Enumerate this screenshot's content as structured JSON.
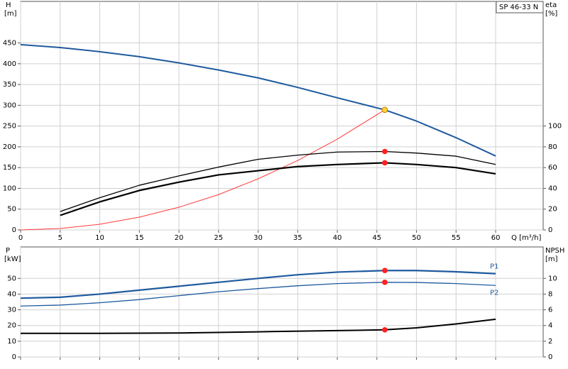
{
  "chart_data": [
    {
      "type": "line",
      "annotation": "SP 46-33 N",
      "ylabel": "H",
      "yunit": "[m]",
      "y2label": "eta",
      "y2unit": "[%]",
      "xlabel": "Q [m³/h]",
      "xlim": [
        0,
        66
      ],
      "xticks": [
        0,
        5,
        10,
        15,
        20,
        25,
        30,
        35,
        40,
        45,
        50,
        55,
        60
      ],
      "ylim": [
        0,
        550
      ],
      "yticks": [
        0,
        50,
        100,
        150,
        200,
        250,
        300,
        350,
        400,
        450
      ],
      "y2lim": [
        0,
        220
      ],
      "y2ticks": [
        0,
        20,
        40,
        60,
        80,
        100
      ],
      "grid": true,
      "series": [
        {
          "color": "#1f5a9e",
          "width": 2,
          "x": [
            0,
            5,
            10,
            15,
            20,
            25,
            30,
            35,
            40,
            46,
            50,
            55,
            60
          ],
          "values": [
            446,
            439,
            429,
            417,
            402,
            385,
            366,
            343,
            318,
            289,
            262,
            222,
            178
          ]
        },
        {
          "color": "#ff3b3b",
          "width": 1,
          "x": [
            0,
            5,
            10,
            15,
            20,
            25,
            30,
            35,
            40,
            46
          ],
          "values": [
            0,
            3.4,
            13.7,
            30.7,
            54.6,
            85,
            123,
            167,
            218.5,
            289
          ]
        },
        {
          "color": "#000000",
          "width": 1.3,
          "axis": "y2",
          "x": [
            5,
            10,
            15,
            20,
            25,
            30,
            35,
            40,
            46,
            50,
            55,
            60
          ],
          "values": [
            17.7,
            31,
            43,
            52,
            60.5,
            68,
            72,
            75,
            75.5,
            74,
            71,
            63
          ]
        },
        {
          "color": "#000000",
          "width": 2.2,
          "axis": "y2",
          "x": [
            5,
            10,
            15,
            20,
            25,
            30,
            35,
            40,
            46,
            50,
            55,
            60
          ],
          "values": [
            14,
            27,
            38,
            46,
            53,
            57,
            61,
            63,
            64.6,
            63,
            60,
            54
          ]
        },
        {
          "style": "point",
          "color": "#ff2020",
          "axis": "y2",
          "x": [
            46
          ],
          "values": [
            75.5
          ]
        },
        {
          "style": "point",
          "color": "#ff2020",
          "axis": "y2",
          "x": [
            46
          ],
          "values": [
            64.6
          ]
        },
        {
          "style": "point",
          "color": "#ffd23f",
          "x": [
            46
          ],
          "values": [
            289
          ]
        }
      ]
    },
    {
      "type": "line",
      "ylabel": "P",
      "yunit": "[kW]",
      "y2label": "NPSH",
      "y2unit": "[m]",
      "xlim": [
        0,
        66
      ],
      "xticks": [
        0,
        5,
        10,
        15,
        20,
        25,
        30,
        35,
        40,
        45,
        50,
        55,
        60
      ],
      "ylim": [
        0,
        70
      ],
      "yticks": [
        0,
        10,
        20,
        30,
        40,
        50
      ],
      "y2lim": [
        0,
        14
      ],
      "y2ticks": [
        0,
        2,
        4,
        6,
        8,
        10
      ],
      "grid": true,
      "series": [
        {
          "name": "P1",
          "color": "#1f5a9e",
          "width": 2.2,
          "x": [
            0,
            5,
            10,
            15,
            20,
            25,
            30,
            35,
            40,
            46,
            50,
            55,
            60
          ],
          "values": [
            37.4,
            38,
            40,
            42.5,
            45,
            47.5,
            50,
            52.3,
            54,
            55,
            55,
            54.2,
            53
          ]
        },
        {
          "name": "P2",
          "color": "#1f5a9e",
          "width": 1.3,
          "x": [
            0,
            5,
            10,
            15,
            20,
            25,
            30,
            35,
            40,
            46,
            50,
            55,
            60
          ],
          "values": [
            32.4,
            33,
            34.5,
            36.5,
            39,
            41.5,
            43.5,
            45.3,
            46.7,
            47.5,
            47.4,
            46.7,
            45.5
          ]
        },
        {
          "color": "#000000",
          "width": 2,
          "axis": "y2",
          "x": [
            0,
            10,
            20,
            30,
            40,
            46,
            50,
            55,
            60
          ],
          "values": [
            3.0,
            3.0,
            3.05,
            3.2,
            3.35,
            3.45,
            3.7,
            4.2,
            4.8
          ]
        },
        {
          "style": "point",
          "color": "#ff2020",
          "x": [
            46
          ],
          "values": [
            55
          ]
        },
        {
          "style": "point",
          "color": "#ff2020",
          "x": [
            46
          ],
          "values": [
            47.5
          ]
        },
        {
          "style": "point",
          "color": "#ff2020",
          "axis": "y2",
          "x": [
            46
          ],
          "values": [
            3.45
          ]
        }
      ]
    }
  ]
}
